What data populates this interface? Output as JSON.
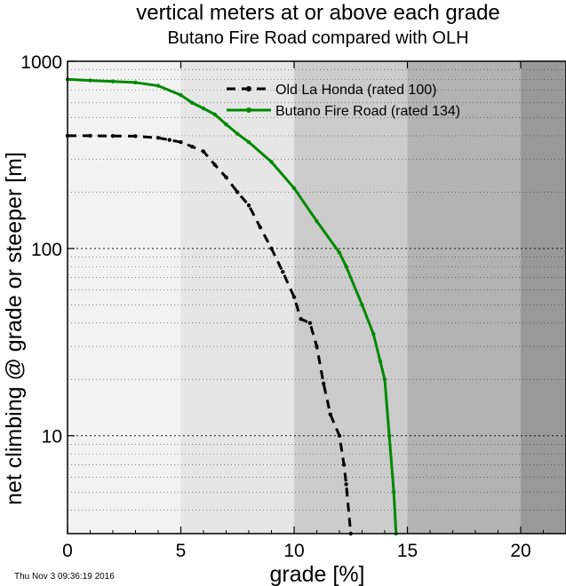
{
  "chart_data": {
    "type": "line",
    "title": "vertical meters at or above each grade",
    "subtitle": "Butano Fire Road compared with OLH",
    "xlabel": "grade [%]",
    "ylabel": "net climbing @ grade or steeper [m]",
    "xlim": [
      0,
      22
    ],
    "ylim": [
      3,
      1000
    ],
    "yscale": "log",
    "x_ticks": [
      "0",
      "5",
      "10",
      "15",
      "20"
    ],
    "y_ticks": [
      "10",
      "100",
      "1000"
    ],
    "grid": "horizontal dotted at decades and minor decades",
    "legend_position": "top-right",
    "background_bands": [
      {
        "from": 0,
        "to": 5,
        "color": "#f2f2f2"
      },
      {
        "from": 5,
        "to": 10,
        "color": "#e6e6e6"
      },
      {
        "from": 10,
        "to": 15,
        "color": "#cccccc"
      },
      {
        "from": 15,
        "to": 20,
        "color": "#b3b3b3"
      },
      {
        "from": 20,
        "to": 22,
        "color": "#999999"
      }
    ],
    "series": [
      {
        "name": "Old La Honda (rated 100)",
        "color": "#000000",
        "dash": true,
        "points": [
          [
            0,
            400
          ],
          [
            1,
            400
          ],
          [
            2,
            399
          ],
          [
            3,
            398
          ],
          [
            4,
            390
          ],
          [
            4.5,
            380
          ],
          [
            5,
            370
          ],
          [
            5.5,
            350
          ],
          [
            6,
            330
          ],
          [
            6.5,
            280
          ],
          [
            7,
            240
          ],
          [
            7.5,
            200
          ],
          [
            8,
            170
          ],
          [
            8.5,
            130
          ],
          [
            9,
            100
          ],
          [
            9.5,
            75
          ],
          [
            10,
            55
          ],
          [
            10.3,
            42
          ],
          [
            10.7,
            40
          ],
          [
            11,
            30
          ],
          [
            11.3,
            19
          ],
          [
            11.6,
            13
          ],
          [
            12,
            10
          ],
          [
            12.2,
            7
          ],
          [
            12.3,
            5.5
          ],
          [
            12.5,
            3
          ]
        ]
      },
      {
        "name": "Butano Fire Road (rated 134)",
        "color": "#008800",
        "dash": false,
        "points": [
          [
            0,
            800
          ],
          [
            1,
            790
          ],
          [
            2,
            780
          ],
          [
            3,
            770
          ],
          [
            4,
            740
          ],
          [
            5,
            660
          ],
          [
            5.5,
            600
          ],
          [
            6,
            560
          ],
          [
            6.5,
            520
          ],
          [
            7,
            460
          ],
          [
            7.5,
            410
          ],
          [
            8,
            370
          ],
          [
            9,
            290
          ],
          [
            10,
            210
          ],
          [
            11,
            140
          ],
          [
            12,
            95
          ],
          [
            12.3,
            80
          ],
          [
            13,
            50
          ],
          [
            13.5,
            35
          ],
          [
            13.8,
            25
          ],
          [
            14,
            20
          ],
          [
            14.2,
            10
          ],
          [
            14.4,
            5
          ],
          [
            14.5,
            3
          ]
        ]
      }
    ]
  },
  "timestamp": "Thu Nov  3 09:36:19 2016"
}
